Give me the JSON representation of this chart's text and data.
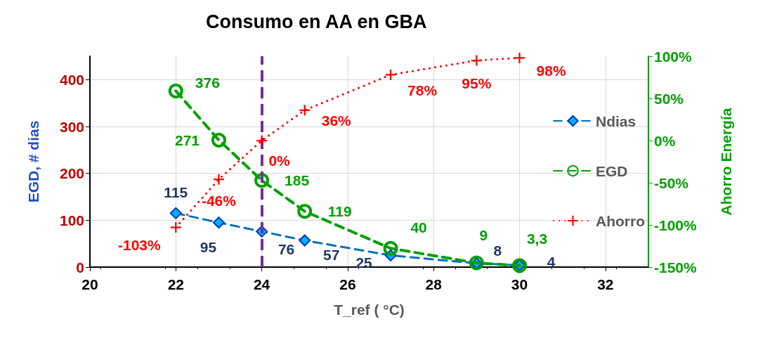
{
  "chart_data": {
    "type": "line",
    "title": "Consumo en AA en GBA",
    "xlabel": "T_ref ( °C)",
    "ylabel": "EGD, # dias",
    "y2label": "Ahorro Energía",
    "xlim": [
      20,
      33
    ],
    "xticks": [
      20,
      22,
      24,
      26,
      28,
      30,
      32
    ],
    "ylim": [
      0,
      450
    ],
    "yticks": [
      0,
      100,
      200,
      300,
      400
    ],
    "y2lim": [
      -150,
      100
    ],
    "y2ticks": [
      {
        "value": -150,
        "label": "-150%"
      },
      {
        "value": -100,
        "label": "-100%"
      },
      {
        "value": -50,
        "label": "-50%"
      },
      {
        "value": 0,
        "label": "0%"
      },
      {
        "value": 50,
        "label": "50%"
      },
      {
        "value": 100,
        "label": "100%"
      }
    ],
    "grid": true,
    "legend": "right",
    "ref_lines": [
      {
        "axis": "x",
        "value": 24,
        "color": "#7030a0",
        "line_style": "dashed"
      }
    ],
    "series": [
      {
        "name": "Ndias",
        "color": "#0070c0",
        "marker": "diamond",
        "line_style": "dashed",
        "x": [
          22,
          23,
          24,
          25,
          27,
          29,
          30
        ],
        "values": [
          115,
          95,
          76,
          57,
          25,
          8,
          4
        ],
        "value_labels": [
          "115",
          "95",
          "76",
          "57",
          "25",
          "8",
          "4"
        ]
      },
      {
        "name": "EGD",
        "color": "#00a000",
        "marker": "circle",
        "line_style": "dashed",
        "x": [
          22,
          23,
          24,
          25,
          27,
          29,
          30
        ],
        "values": [
          376,
          271,
          185,
          119,
          40,
          9,
          3.3
        ],
        "value_labels": [
          "376",
          "271",
          "185",
          "119",
          "40",
          "9",
          "3,3"
        ]
      },
      {
        "name": "Ahorro",
        "color": "#ff0000",
        "marker": "cross",
        "line_style": "dotted",
        "axis": "y2",
        "x": [
          22,
          23,
          24,
          25,
          27,
          29,
          30
        ],
        "values": [
          -103,
          -46,
          0,
          36,
          78,
          95,
          98
        ],
        "value_labels": [
          "-103%",
          "-46%",
          "0%",
          "36%",
          "78%",
          "95%",
          "98%"
        ]
      }
    ]
  }
}
